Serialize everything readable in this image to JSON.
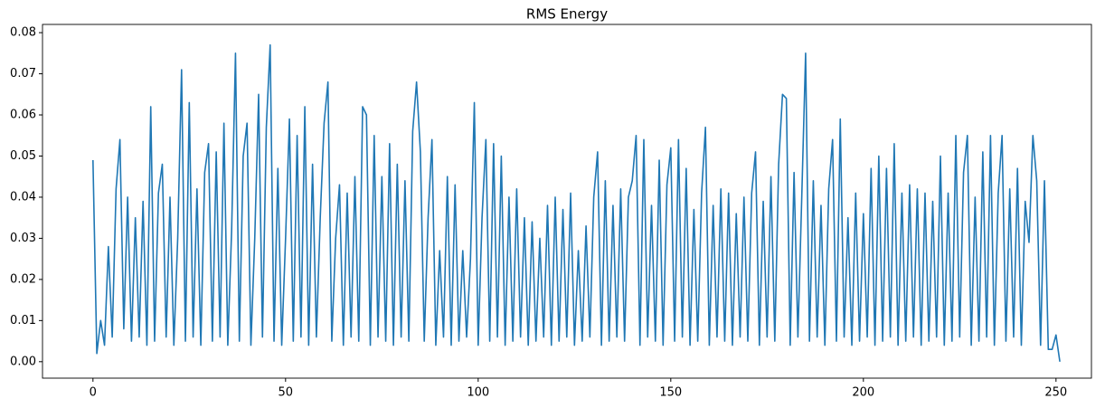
{
  "chart_data": {
    "type": "line",
    "title": "RMS Energy",
    "x": [
      0,
      1,
      2,
      3,
      4,
      5,
      6,
      7,
      8,
      9,
      10,
      11,
      12,
      13,
      14,
      15,
      16,
      17,
      18,
      19,
      20,
      21,
      22,
      23,
      24,
      25,
      26,
      27,
      28,
      29,
      30,
      31,
      32,
      33,
      34,
      35,
      36,
      37,
      38,
      39,
      40,
      41,
      42,
      43,
      44,
      45,
      46,
      47,
      48,
      49,
      50,
      51,
      52,
      53,
      54,
      55,
      56,
      57,
      58,
      59,
      60,
      61,
      62,
      63,
      64,
      65,
      66,
      67,
      68,
      69,
      70,
      71,
      72,
      73,
      74,
      75,
      76,
      77,
      78,
      79,
      80,
      81,
      82,
      83,
      84,
      85,
      86,
      87,
      88,
      89,
      90,
      91,
      92,
      93,
      94,
      95,
      96,
      97,
      98,
      99,
      100,
      101,
      102,
      103,
      104,
      105,
      106,
      107,
      108,
      109,
      110,
      111,
      112,
      113,
      114,
      115,
      116,
      117,
      118,
      119,
      120,
      121,
      122,
      123,
      124,
      125,
      126,
      127,
      128,
      129,
      130,
      131,
      132,
      133,
      134,
      135,
      136,
      137,
      138,
      139,
      140,
      141,
      142,
      143,
      144,
      145,
      146,
      147,
      148,
      149,
      150,
      151,
      152,
      153,
      154,
      155,
      156,
      157,
      158,
      159,
      160,
      161,
      162,
      163,
      164,
      165,
      166,
      167,
      168,
      169,
      170,
      171,
      172,
      173,
      174,
      175,
      176,
      177,
      178,
      179,
      180,
      181,
      182,
      183,
      184,
      185,
      186,
      187,
      188,
      189,
      190,
      191,
      192,
      193,
      194,
      195,
      196,
      197,
      198,
      199,
      200,
      201,
      202,
      203,
      204,
      205,
      206,
      207,
      208,
      209,
      210,
      211,
      212,
      213,
      214,
      215,
      216,
      217,
      218,
      219,
      220,
      221,
      222,
      223,
      224,
      225,
      226,
      227,
      228,
      229,
      230,
      231,
      232,
      233,
      234,
      235,
      236,
      237,
      238,
      239,
      240,
      241,
      242,
      243,
      244,
      245,
      246,
      247,
      248,
      249,
      250,
      251
    ],
    "series": [
      {
        "color": "#1f77b4",
        "values": [
          0.049,
          0.002,
          0.01,
          0.004,
          0.028,
          0.006,
          0.042,
          0.054,
          0.008,
          0.04,
          0.005,
          0.035,
          0.006,
          0.039,
          0.004,
          0.062,
          0.005,
          0.041,
          0.048,
          0.006,
          0.04,
          0.004,
          0.03,
          0.071,
          0.005,
          0.063,
          0.006,
          0.042,
          0.004,
          0.046,
          0.053,
          0.005,
          0.051,
          0.006,
          0.058,
          0.004,
          0.032,
          0.075,
          0.005,
          0.05,
          0.058,
          0.004,
          0.03,
          0.065,
          0.006,
          0.057,
          0.077,
          0.005,
          0.047,
          0.004,
          0.03,
          0.059,
          0.005,
          0.055,
          0.006,
          0.062,
          0.004,
          0.048,
          0.006,
          0.035,
          0.058,
          0.068,
          0.005,
          0.03,
          0.043,
          0.004,
          0.041,
          0.006,
          0.045,
          0.005,
          0.062,
          0.06,
          0.004,
          0.055,
          0.006,
          0.045,
          0.005,
          0.053,
          0.004,
          0.048,
          0.006,
          0.044,
          0.005,
          0.056,
          0.068,
          0.051,
          0.005,
          0.035,
          0.054,
          0.004,
          0.027,
          0.006,
          0.045,
          0.004,
          0.043,
          0.005,
          0.027,
          0.006,
          0.025,
          0.063,
          0.004,
          0.035,
          0.054,
          0.005,
          0.053,
          0.006,
          0.05,
          0.004,
          0.04,
          0.005,
          0.042,
          0.006,
          0.035,
          0.004,
          0.034,
          0.005,
          0.03,
          0.006,
          0.038,
          0.004,
          0.04,
          0.005,
          0.037,
          0.006,
          0.041,
          0.004,
          0.027,
          0.005,
          0.033,
          0.006,
          0.04,
          0.051,
          0.004,
          0.044,
          0.005,
          0.038,
          0.006,
          0.042,
          0.005,
          0.04,
          0.044,
          0.055,
          0.004,
          0.054,
          0.006,
          0.038,
          0.005,
          0.049,
          0.004,
          0.043,
          0.052,
          0.005,
          0.054,
          0.006,
          0.047,
          0.004,
          0.037,
          0.005,
          0.041,
          0.057,
          0.004,
          0.038,
          0.006,
          0.042,
          0.005,
          0.041,
          0.004,
          0.036,
          0.006,
          0.04,
          0.005,
          0.041,
          0.051,
          0.004,
          0.039,
          0.006,
          0.045,
          0.005,
          0.048,
          0.065,
          0.064,
          0.004,
          0.046,
          0.006,
          0.04,
          0.075,
          0.005,
          0.044,
          0.006,
          0.038,
          0.004,
          0.042,
          0.054,
          0.005,
          0.059,
          0.006,
          0.035,
          0.004,
          0.041,
          0.005,
          0.036,
          0.006,
          0.047,
          0.004,
          0.05,
          0.005,
          0.047,
          0.006,
          0.053,
          0.004,
          0.041,
          0.005,
          0.043,
          0.006,
          0.042,
          0.004,
          0.041,
          0.005,
          0.039,
          0.006,
          0.05,
          0.004,
          0.041,
          0.005,
          0.055,
          0.006,
          0.046,
          0.055,
          0.004,
          0.04,
          0.005,
          0.051,
          0.006,
          0.055,
          0.004,
          0.041,
          0.055,
          0.005,
          0.042,
          0.006,
          0.047,
          0.004,
          0.039,
          0.029,
          0.055,
          0.044,
          0.004,
          0.044,
          0.003,
          0.003,
          0.0065,
          0
        ]
      }
    ],
    "xlim": [
      -13.1,
      259.2
    ],
    "xticks": [
      0,
      50,
      100,
      150,
      200,
      250
    ],
    "ylim": [
      -0.004,
      0.082
    ],
    "yticks": [
      {
        "value": 0,
        "label": "0.00"
      },
      {
        "value": 0.01,
        "label": "0.01"
      },
      {
        "value": 0.02,
        "label": "0.02"
      },
      {
        "value": 0.03,
        "label": "0.03"
      },
      {
        "value": 0.04,
        "label": "0.04"
      },
      {
        "value": 0.05,
        "label": "0.05"
      },
      {
        "value": 0.06,
        "label": "0.06"
      },
      {
        "value": 0.07,
        "label": "0.07"
      },
      {
        "value": 0.08,
        "label": "0.08"
      }
    ]
  }
}
